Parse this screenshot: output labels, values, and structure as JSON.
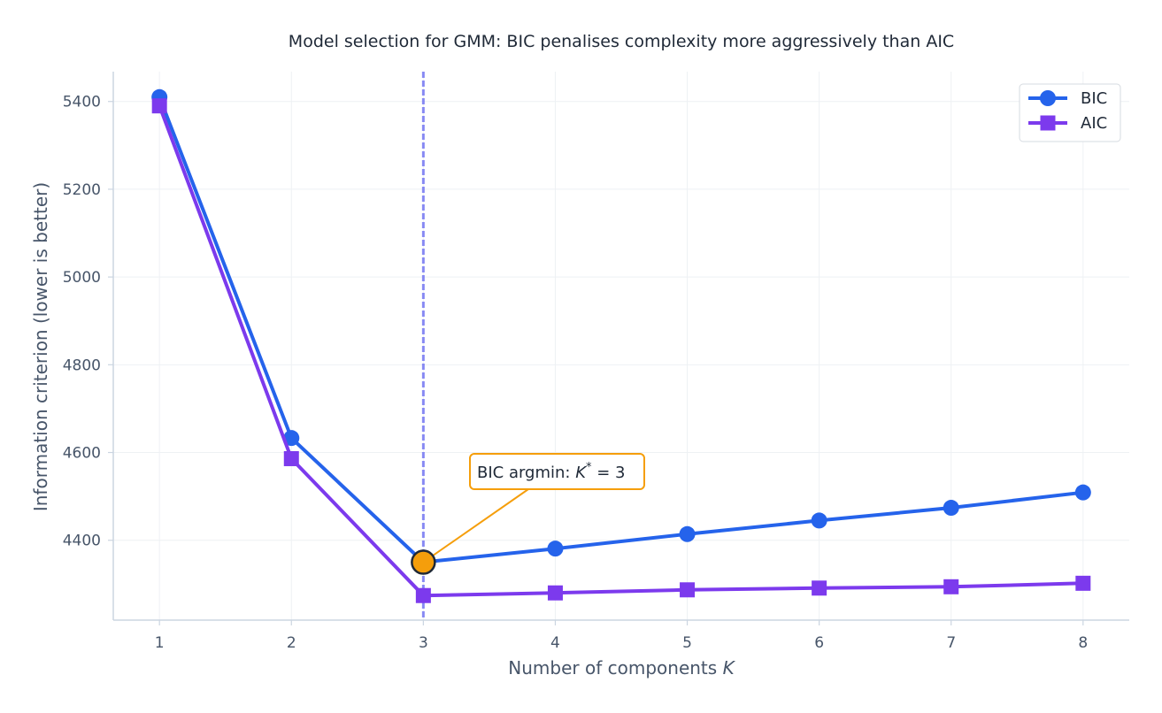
{
  "chart_data": {
    "type": "line",
    "title": "Model selection for GMM: BIC penalises complexity more aggressively than AIC",
    "xlabel": "Number of components ",
    "xlabel_var": "K",
    "ylabel": "Information criterion (lower is better)",
    "x": [
      1,
      2,
      3,
      4,
      5,
      6,
      7,
      8
    ],
    "xlim": [
      0.65,
      8.35
    ],
    "ylim": [
      4218,
      5468
    ],
    "yticks": [
      4400,
      4600,
      4800,
      5000,
      5200,
      5400
    ],
    "grid": true,
    "legend_position": "top-right",
    "series": [
      {
        "name": "BIC",
        "marker": "circle",
        "color": "#2563eb",
        "values": [
          5410,
          4633,
          4350,
          4381,
          4414,
          4445,
          4474,
          4509
        ]
      },
      {
        "name": "AIC",
        "marker": "square",
        "color": "#7c3aed",
        "values": [
          5390,
          4586,
          4274,
          4280,
          4287,
          4291,
          4294,
          4302
        ]
      }
    ],
    "vline": {
      "x": 3,
      "color": "#6366f1"
    },
    "annotation": {
      "prefix": "BIC argmin: ",
      "var": "K",
      "sup": "*",
      "eq": " = 3",
      "point_x": 3,
      "point_y": 4350,
      "color": "#f59e0b"
    }
  }
}
